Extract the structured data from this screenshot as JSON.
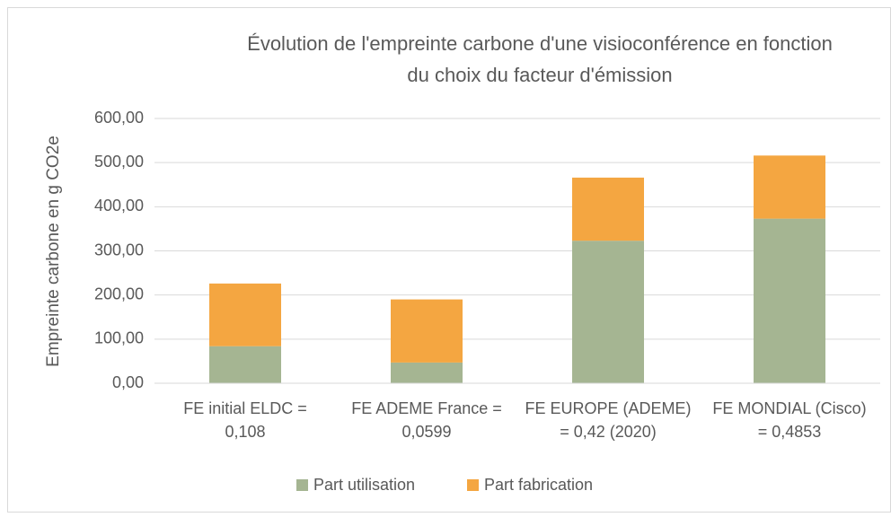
{
  "chart_data": {
    "type": "stacked_bar",
    "title": [
      "Évolution de l'empreinte carbone d'une visioconférence en fonction",
      "du choix du facteur d'émission"
    ],
    "y_label": "Empreinte carbone en g CO2e",
    "categories": [
      [
        "FE initial ELDC =",
        "0,108"
      ],
      [
        "FE ADEME France =",
        "0,0599"
      ],
      [
        "FE EUROPE (ADEME)",
        "= 0,42 (2020)"
      ],
      [
        "FE MONDIAL (Cisco)",
        "= 0,4853"
      ]
    ],
    "series": [
      {
        "name": "Part utilisation",
        "color": "#a5b592",
        "values": [
          84,
          47,
          323,
          373
        ]
      },
      {
        "name": "Part fabrication",
        "color": "#f4a641",
        "values": [
          142,
          143,
          143,
          143
        ]
      }
    ],
    "ylim": [
      0,
      600
    ],
    "yticks": [
      {
        "value": 0,
        "label": "0,00"
      },
      {
        "value": 100,
        "label": "100,00"
      },
      {
        "value": 200,
        "label": "200,00"
      },
      {
        "value": 300,
        "label": "300,00"
      },
      {
        "value": 400,
        "label": "400,00"
      },
      {
        "value": 500,
        "label": "500,00"
      },
      {
        "value": 600,
        "label": "600,00"
      }
    ],
    "grid": true,
    "legend": "bottom"
  }
}
